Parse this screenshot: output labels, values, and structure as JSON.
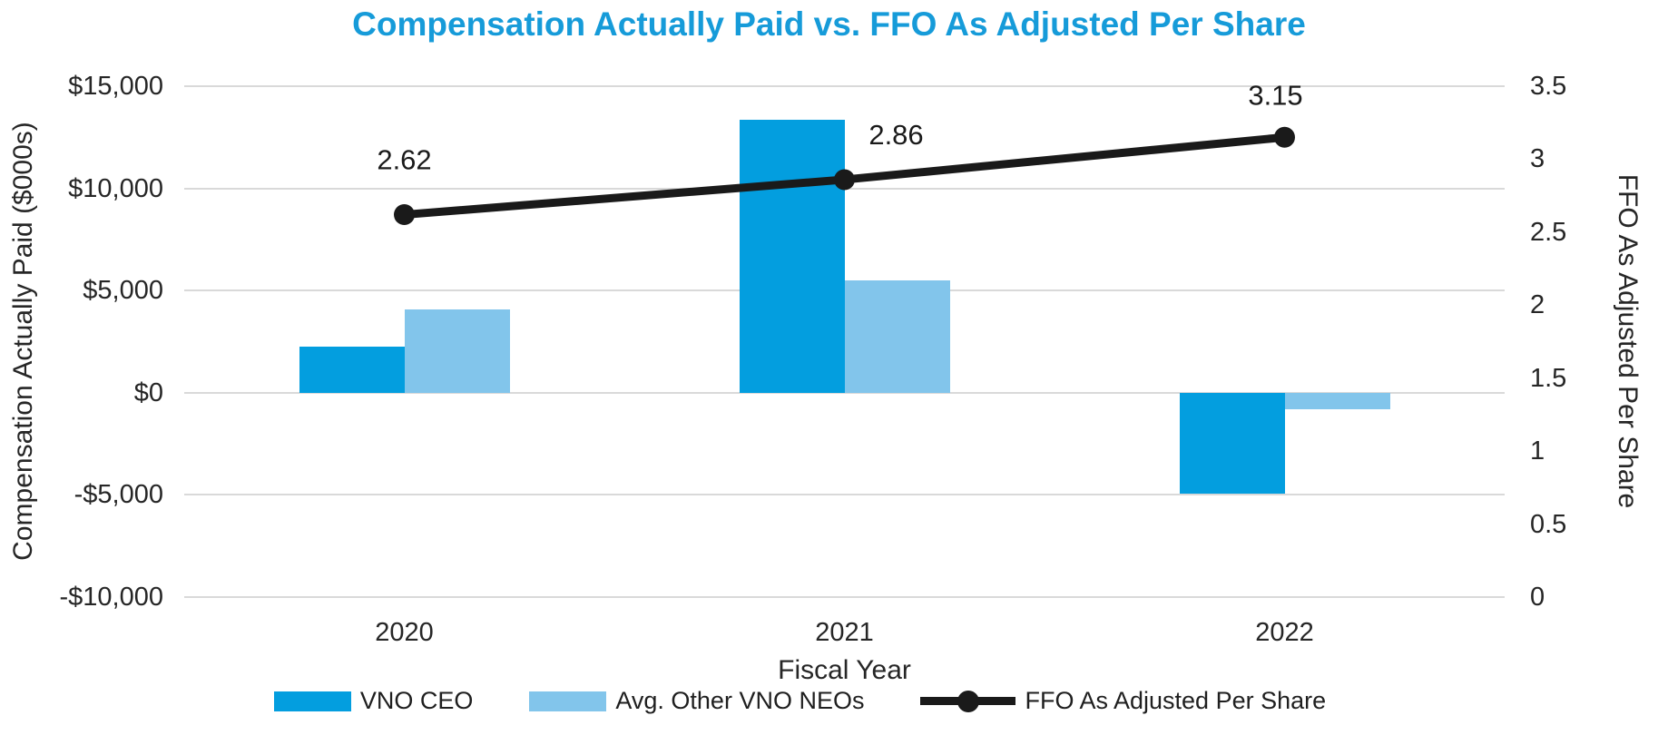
{
  "chart": {
    "title": "Compensation Actually Paid vs. FFO As Adjusted Per Share",
    "x_axis_title": "Fiscal Year",
    "left_axis_title": "Compensation Actually Paid ($000s)",
    "right_axis_title": "FFO As Adjusted Per Share"
  },
  "colors": {
    "title": "#169BD9",
    "ceo_bar": "#039EDF",
    "neo_bar": "#82C5EB",
    "line": "#1A1A1A",
    "gridline": "#D9D9D9",
    "axis_text": "#262626",
    "data_label": "#1A1A1A",
    "background": "#FFFFFF"
  },
  "chart_data": {
    "type": "bar",
    "subtype": "grouped-bar-with-line-combo",
    "title": "Compensation Actually Paid vs. FFO As Adjusted Per Share",
    "categories": [
      "2020",
      "2021",
      "2022"
    ],
    "series": [
      {
        "name": "VNO CEO",
        "type": "bar",
        "axis": "left",
        "color": "#039EDF",
        "values": [
          2272,
          13337,
          -4947
        ]
      },
      {
        "name": "Avg. Other VNO NEOs",
        "type": "bar",
        "axis": "left",
        "color": "#82C5EB",
        "values": [
          4055,
          5482,
          -805
        ]
      },
      {
        "name": "FFO As Adjusted Per Share",
        "type": "line",
        "axis": "right",
        "color": "#1A1A1A",
        "values": [
          2.62,
          2.86,
          3.15
        ],
        "data_labels": [
          "2.62",
          "2.86",
          "3.15"
        ]
      }
    ],
    "xlabel": "Fiscal Year",
    "left_axis": {
      "title": "Compensation Actually Paid ($000s)",
      "min": -10000,
      "max": 15000,
      "step": 5000,
      "tick_labels": [
        "$15,000",
        "$10,000",
        "$5,000",
        "$0",
        "-$5,000",
        "-$10,000"
      ]
    },
    "right_axis": {
      "title": "FFO As Adjusted Per Share",
      "min": 0,
      "max": 3.5,
      "step": 0.5,
      "tick_labels": [
        "3.5",
        "3",
        "2.5",
        "2",
        "1.5",
        "1",
        "0.5",
        "0"
      ]
    },
    "gridlines": "horizontal-major",
    "legend_position": "bottom"
  }
}
